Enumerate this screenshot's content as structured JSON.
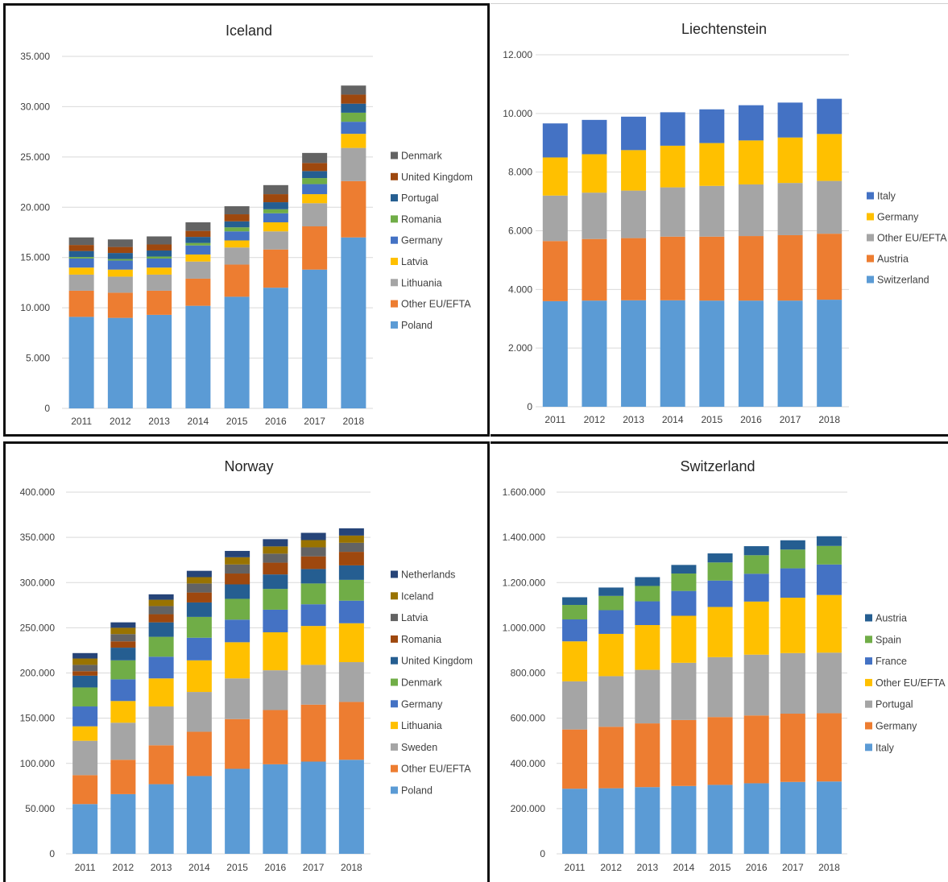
{
  "chart_data": [
    {
      "type": "bar",
      "stacked": true,
      "title": "Iceland",
      "categories": [
        "2011",
        "2012",
        "2013",
        "2014",
        "2015",
        "2016",
        "2017",
        "2018"
      ],
      "ylim": [
        0,
        35000
      ],
      "yticks": [
        0,
        5000,
        10000,
        15000,
        20000,
        25000,
        30000,
        35000
      ],
      "ytick_labels": [
        "0",
        "5.000",
        "10.000",
        "15.000",
        "20.000",
        "25.000",
        "30.000",
        "35.000"
      ],
      "grid": true,
      "legend": "right",
      "series": [
        {
          "name": "Poland",
          "color": "#5B9BD5",
          "values": [
            9100,
            9000,
            9300,
            10200,
            11100,
            12000,
            13800,
            17000
          ]
        },
        {
          "name": "Other EU/EFTA",
          "color": "#ED7D31",
          "values": [
            2600,
            2500,
            2400,
            2700,
            3200,
            3800,
            4300,
            5600
          ]
        },
        {
          "name": "Lithuania",
          "color": "#A5A5A5",
          "values": [
            1600,
            1600,
            1600,
            1700,
            1700,
            1800,
            2300,
            3300
          ]
        },
        {
          "name": "Latvia",
          "color": "#FFC000",
          "values": [
            700,
            700,
            700,
            700,
            700,
            900,
            900,
            1400
          ]
        },
        {
          "name": "Germany",
          "color": "#4472C4",
          "values": [
            900,
            900,
            900,
            900,
            900,
            900,
            1000,
            1200
          ]
        },
        {
          "name": "Romania",
          "color": "#70AD47",
          "values": [
            150,
            150,
            200,
            250,
            400,
            400,
            600,
            900
          ]
        },
        {
          "name": "Portugal",
          "color": "#255E91",
          "values": [
            600,
            600,
            600,
            600,
            600,
            700,
            700,
            900
          ]
        },
        {
          "name": "United Kingdom",
          "color": "#9E480E",
          "values": [
            600,
            600,
            600,
            600,
            700,
            800,
            800,
            900
          ]
        },
        {
          "name": "Denmark",
          "color": "#636363",
          "values": [
            750,
            750,
            800,
            850,
            800,
            900,
            1000,
            900
          ]
        }
      ]
    },
    {
      "type": "bar",
      "stacked": true,
      "title": "Liechtenstein",
      "categories": [
        "2011",
        "2012",
        "2013",
        "2014",
        "2015",
        "2016",
        "2017",
        "2018"
      ],
      "ylim": [
        0,
        12000
      ],
      "yticks": [
        0,
        2000,
        4000,
        6000,
        8000,
        10000,
        12000
      ],
      "ytick_labels": [
        "0",
        "2.000",
        "4.000",
        "6.000",
        "8.000",
        "10.000",
        "12.000"
      ],
      "grid": true,
      "legend": "right",
      "series": [
        {
          "name": "Switzerland",
          "color": "#5B9BD5",
          "values": [
            3600,
            3620,
            3630,
            3630,
            3620,
            3620,
            3620,
            3650
          ]
        },
        {
          "name": "Austria",
          "color": "#ED7D31",
          "values": [
            2050,
            2100,
            2120,
            2170,
            2180,
            2200,
            2230,
            2250
          ]
        },
        {
          "name": "Other EU/EFTA",
          "color": "#A5A5A5",
          "values": [
            1550,
            1580,
            1620,
            1680,
            1730,
            1760,
            1780,
            1800
          ]
        },
        {
          "name": "Germany",
          "color": "#FFC000",
          "values": [
            1300,
            1310,
            1380,
            1420,
            1460,
            1500,
            1550,
            1600
          ]
        },
        {
          "name": "Italy",
          "color": "#4472C4",
          "values": [
            1160,
            1170,
            1140,
            1140,
            1150,
            1200,
            1190,
            1200
          ]
        }
      ]
    },
    {
      "type": "bar",
      "stacked": true,
      "title": "Norway",
      "categories": [
        "2011",
        "2012",
        "2013",
        "2014",
        "2015",
        "2016",
        "2017",
        "2018"
      ],
      "ylim": [
        0,
        400000
      ],
      "yticks": [
        0,
        50000,
        100000,
        150000,
        200000,
        250000,
        300000,
        350000,
        400000
      ],
      "ytick_labels": [
        "0",
        "50.000",
        "100.000",
        "150.000",
        "200.000",
        "250.000",
        "300.000",
        "350.000",
        "400.000"
      ],
      "grid": true,
      "legend": "right",
      "series": [
        {
          "name": "Poland",
          "color": "#5B9BD5",
          "values": [
            55000,
            66000,
            77000,
            86000,
            94000,
            99000,
            102000,
            104000
          ]
        },
        {
          "name": "Other EU/EFTA",
          "color": "#ED7D31",
          "values": [
            32000,
            38000,
            43000,
            49000,
            55000,
            60000,
            63000,
            64000
          ]
        },
        {
          "name": "Sweden",
          "color": "#A5A5A5",
          "values": [
            38000,
            41000,
            43000,
            44000,
            45000,
            44000,
            44000,
            44000
          ]
        },
        {
          "name": "Lithuania",
          "color": "#FFC000",
          "values": [
            16000,
            24000,
            31000,
            35000,
            40000,
            42000,
            43000,
            43000
          ]
        },
        {
          "name": "Germany",
          "color": "#4472C4",
          "values": [
            22000,
            24000,
            24000,
            25000,
            25000,
            25000,
            24000,
            25000
          ]
        },
        {
          "name": "Denmark",
          "color": "#70AD47",
          "values": [
            21000,
            21000,
            22000,
            23000,
            23000,
            23000,
            23000,
            23000
          ]
        },
        {
          "name": "United Kingdom",
          "color": "#255E91",
          "values": [
            13000,
            14000,
            16000,
            16000,
            16000,
            16000,
            16000,
            16000
          ]
        },
        {
          "name": "Romania",
          "color": "#9E480E",
          "values": [
            5000,
            7000,
            9000,
            11000,
            12000,
            13000,
            14000,
            15000
          ]
        },
        {
          "name": "Latvia",
          "color": "#636363",
          "values": [
            7000,
            8000,
            9000,
            10000,
            10000,
            10000,
            10000,
            10000
          ]
        },
        {
          "name": "Iceland",
          "color": "#997300",
          "values": [
            7000,
            7000,
            7000,
            7000,
            8000,
            8000,
            8000,
            8000
          ]
        },
        {
          "name": "Netherlands",
          "color": "#264478",
          "values": [
            6000,
            6000,
            6000,
            7000,
            7000,
            8000,
            8000,
            8000
          ]
        }
      ]
    },
    {
      "type": "bar",
      "stacked": true,
      "title": "Switzerland",
      "categories": [
        "2011",
        "2012",
        "2013",
        "2014",
        "2015",
        "2016",
        "2017",
        "2018"
      ],
      "ylim": [
        0,
        1600000
      ],
      "yticks": [
        0,
        200000,
        400000,
        600000,
        800000,
        1000000,
        1200000,
        1400000,
        1600000
      ],
      "ytick_labels": [
        "0",
        "200.000",
        "400.000",
        "600.000",
        "800.000",
        "1.000.000",
        "1.200.000",
        "1.400.000",
        "1.600.000"
      ],
      "grid": true,
      "legend": "right",
      "series": [
        {
          "name": "Italy",
          "color": "#5B9BD5",
          "values": [
            288000,
            290000,
            295000,
            300000,
            305000,
            312000,
            318000,
            320000
          ]
        },
        {
          "name": "Germany",
          "color": "#ED7D31",
          "values": [
            262000,
            272000,
            282000,
            292000,
            300000,
            300000,
            302000,
            302000
          ]
        },
        {
          "name": "Portugal",
          "color": "#A5A5A5",
          "values": [
            213000,
            224000,
            237000,
            253000,
            265000,
            269000,
            268000,
            268000
          ]
        },
        {
          "name": "Other EU/EFTA",
          "color": "#FFC000",
          "values": [
            177000,
            187000,
            198000,
            208000,
            222000,
            235000,
            245000,
            255000
          ]
        },
        {
          "name": "France",
          "color": "#4472C4",
          "values": [
            97000,
            105000,
            105000,
            110000,
            117000,
            123000,
            130000,
            135000
          ]
        },
        {
          "name": "Spain",
          "color": "#70AD47",
          "values": [
            64000,
            63000,
            68000,
            77000,
            80000,
            82000,
            83000,
            82000
          ]
        },
        {
          "name": "Austria",
          "color": "#255E91",
          "values": [
            34000,
            37000,
            39000,
            38000,
            40000,
            40000,
            41000,
            43000
          ]
        }
      ]
    }
  ]
}
